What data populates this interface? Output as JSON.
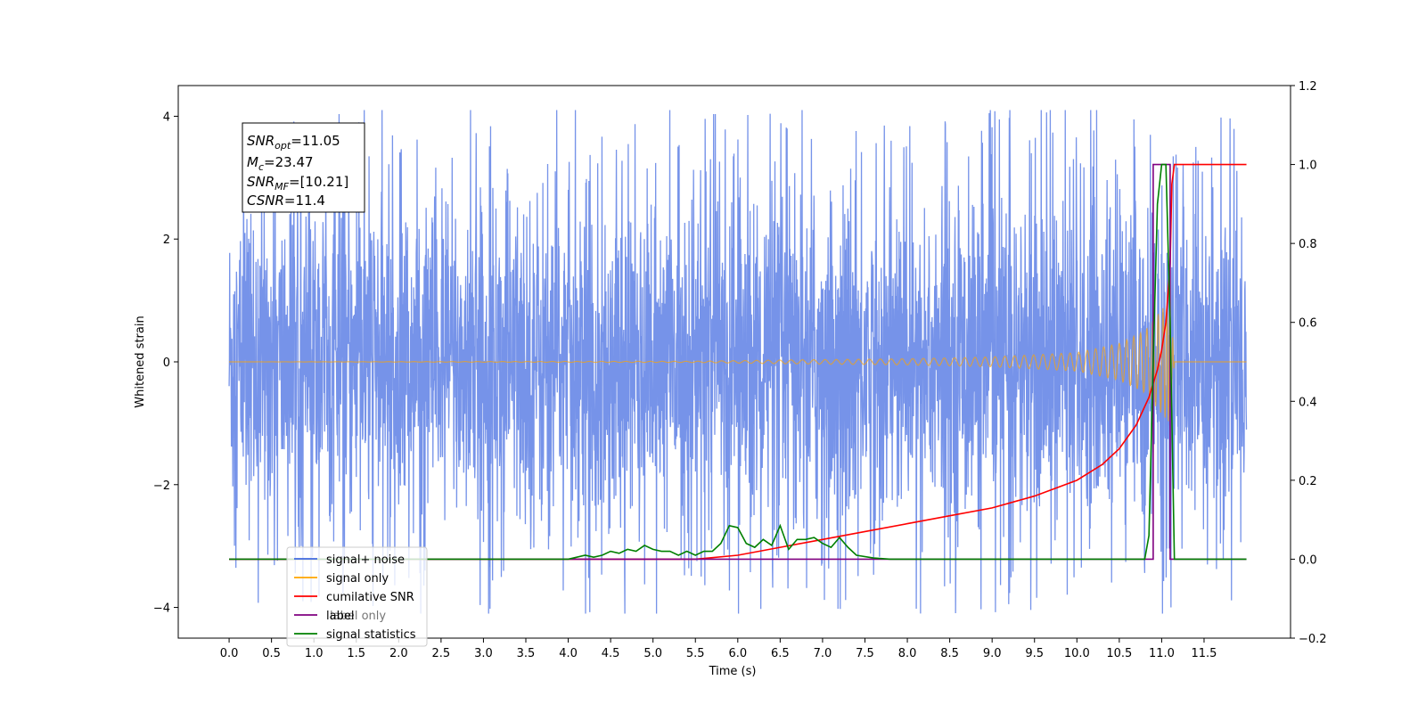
{
  "chart_data": {
    "type": "line",
    "title": "",
    "xlabel": "Time (s)",
    "ylabel": "Whitened strain",
    "y2label": "",
    "xlim": [
      -0.6,
      12.52
    ],
    "ylim": [
      -4.5,
      4.5
    ],
    "y2lim": [
      -0.2,
      1.2
    ],
    "xticks": [
      0.0,
      0.5,
      1.0,
      1.5,
      2.0,
      2.5,
      3.0,
      3.5,
      4.0,
      4.5,
      5.0,
      5.5,
      6.0,
      6.5,
      7.0,
      7.5,
      8.0,
      8.5,
      9.0,
      9.5,
      10.0,
      10.5,
      11.0,
      11.5
    ],
    "xtick_labels": [
      "0.0",
      "0.5",
      "1.0",
      "1.5",
      "2.0",
      "2.5",
      "3.0",
      "3.5",
      "4.0",
      "4.5",
      "5.0",
      "5.5",
      "6.0",
      "6.5",
      "7.0",
      "7.5",
      "8.0",
      "8.5",
      "9.0",
      "9.5",
      "10.0",
      "10.5",
      "11.0",
      "11.5"
    ],
    "yticks": [
      -4,
      -2,
      0,
      2,
      4
    ],
    "ytick_labels": [
      "−4",
      "−2",
      "0",
      "2",
      "4"
    ],
    "y2ticks": [
      -0.2,
      0.0,
      0.2,
      0.4,
      0.6,
      0.8,
      1.0,
      1.2
    ],
    "y2tick_labels": [
      "−0.2",
      "0.0",
      "0.2",
      "0.4",
      "0.6",
      "0.8",
      "1.0",
      "1.2"
    ],
    "grid": false,
    "legend_position": "bottom-left",
    "annotation": {
      "lines": [
        {
          "sym": "SNR",
          "sub": "opt",
          "val": "=11.05"
        },
        {
          "sym": "M",
          "sub": "c",
          "val": "=23.47"
        },
        {
          "sym": "SNR",
          "sub": "MF",
          "val": "=[10.21]"
        },
        {
          "sym": "CSNR",
          "sub": "",
          "val": "=11.4"
        }
      ]
    },
    "series": [
      {
        "name": "signal+ noise",
        "axis": "left",
        "color": "#4169e1",
        "kind": "noise",
        "x_range": [
          0.0,
          12.0
        ],
        "envelope": [
          [
            0.0,
            1.5
          ],
          [
            2.0,
            1.6
          ],
          [
            6.0,
            1.6
          ],
          [
            9.0,
            1.6
          ],
          [
            12.0,
            1.6
          ]
        ],
        "peaks_max": 4.1,
        "peaks_min": -4.1
      },
      {
        "name": "signal only",
        "axis": "left",
        "color": "#ffa500",
        "kind": "chirp",
        "x_range": [
          0.0,
          12.0
        ],
        "merger_time": 11.1,
        "envelope": [
          [
            0.0,
            0.0
          ],
          [
            5.5,
            0.01
          ],
          [
            6.5,
            0.03
          ],
          [
            8.0,
            0.05
          ],
          [
            9.0,
            0.08
          ],
          [
            10.0,
            0.15
          ],
          [
            10.5,
            0.3
          ],
          [
            10.8,
            0.5
          ],
          [
            11.0,
            0.85
          ],
          [
            11.1,
            1.0
          ],
          [
            11.15,
            0.0
          ],
          [
            12.0,
            0.0
          ]
        ]
      },
      {
        "name": "cumilative SNR",
        "axis": "right",
        "color": "#ff0000",
        "kind": "line",
        "x": [
          0.0,
          5.5,
          6.0,
          6.5,
          7.0,
          7.5,
          8.0,
          8.5,
          9.0,
          9.5,
          10.0,
          10.3,
          10.5,
          10.7,
          10.85,
          10.95,
          11.0,
          11.05,
          11.1,
          11.12,
          11.15,
          12.0
        ],
        "y": [
          0.0,
          0.0,
          0.01,
          0.03,
          0.05,
          0.07,
          0.09,
          0.11,
          0.13,
          0.16,
          0.2,
          0.24,
          0.28,
          0.34,
          0.41,
          0.48,
          0.53,
          0.6,
          0.75,
          0.95,
          1.0,
          1.0
        ]
      },
      {
        "name": "label",
        "axis": "right",
        "color": "#800080",
        "kind": "line",
        "x": [
          0.0,
          10.9,
          10.9,
          11.1,
          11.1,
          12.0
        ],
        "y": [
          0.0,
          0.0,
          1.0,
          1.0,
          0.0,
          0.0
        ]
      },
      {
        "name": "signal statistics",
        "axis": "right",
        "color": "#008000",
        "kind": "line",
        "x": [
          0.0,
          3.8,
          4.0,
          4.2,
          4.3,
          4.4,
          4.5,
          4.6,
          4.7,
          4.8,
          4.9,
          5.0,
          5.1,
          5.2,
          5.3,
          5.4,
          5.5,
          5.6,
          5.7,
          5.8,
          5.9,
          6.0,
          6.1,
          6.2,
          6.3,
          6.4,
          6.5,
          6.6,
          6.7,
          6.8,
          6.9,
          7.0,
          7.1,
          7.2,
          7.3,
          7.4,
          7.6,
          7.8,
          10.8,
          10.85,
          10.9,
          10.95,
          11.0,
          11.05,
          11.1,
          11.15,
          11.2,
          12.0
        ],
        "y": [
          0.0,
          0.0,
          0.0,
          0.01,
          0.005,
          0.01,
          0.02,
          0.015,
          0.025,
          0.02,
          0.035,
          0.025,
          0.02,
          0.02,
          0.01,
          0.02,
          0.01,
          0.02,
          0.02,
          0.04,
          0.085,
          0.08,
          0.04,
          0.03,
          0.05,
          0.035,
          0.085,
          0.025,
          0.05,
          0.05,
          0.055,
          0.04,
          0.03,
          0.055,
          0.03,
          0.01,
          0.003,
          0.0,
          0.0,
          0.06,
          0.5,
          0.9,
          1.0,
          1.0,
          0.6,
          0.0,
          0.0,
          0.0
        ]
      }
    ],
    "legend": [
      {
        "label": "signal+ noise",
        "color": "#4169e1"
      },
      {
        "label": "signal only",
        "color": "#ffa500"
      },
      {
        "label": "cumilative SNR",
        "color": "#ff0000"
      },
      {
        "label": "label",
        "color": "#800080"
      },
      {
        "label": "signal statistics",
        "color": "#008000"
      }
    ],
    "legend_hidden_label": "label only"
  }
}
